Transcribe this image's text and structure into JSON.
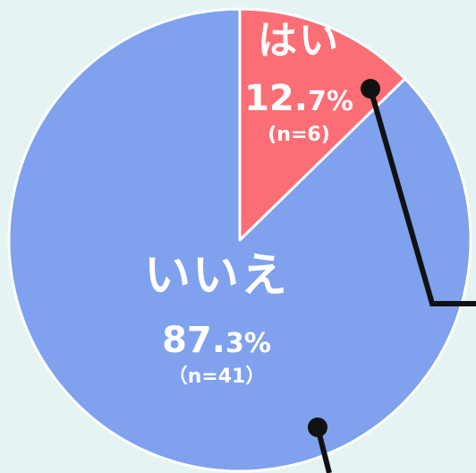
{
  "chart_data": {
    "type": "pie",
    "title": "",
    "categories": [
      "はい",
      "いいえ"
    ],
    "values": [
      12.7,
      87.3
    ],
    "counts": [
      "(n=6)",
      "（n=41）"
    ],
    "series": [
      {
        "name": "はい",
        "value": 12.7,
        "percent_int": "12.",
        "percent_dec": "7%",
        "count_label": "(n=6)",
        "color": "#fc6e75"
      },
      {
        "name": "いいえ",
        "value": 87.3,
        "percent_int": "87.",
        "percent_dec": "3%",
        "count_label": "（n=41）",
        "color": "#7fa1ee"
      }
    ],
    "legend": "none",
    "leader_line_color": "#111111",
    "edge_color": "#ffffff"
  }
}
